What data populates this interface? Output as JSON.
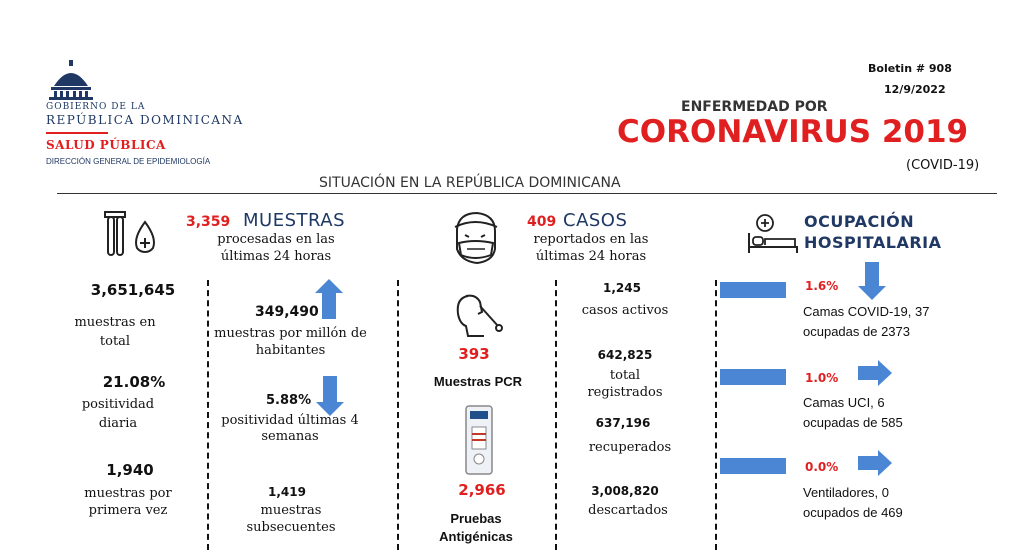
{
  "header": {
    "gov_line1": "GOBIERNO DE LA",
    "gov_line2": "REPÚBLICA DOMINICANA",
    "ministry": "SALUD PÚBLICA",
    "directorate": "DIRECCIÓN GENERAL DE EPIDEMIOLOGÍA",
    "bulletin": "Boletin # 908",
    "date": "12/9/2022",
    "title_small": "ENFERMEDAD POR",
    "title_big": "CORONAVIRUS 2019",
    "title_paren": "(COVID-19)",
    "subtitle": "SITUACIÓN EN LA REPÚBLICA DOMINICANA"
  },
  "muestras": {
    "daily_value": "3,359",
    "heading": "MUESTRAS",
    "caption": "procesadas en las últimas 24 horas",
    "total_value": "3,651,645",
    "total_label": "muestras en total",
    "pos_daily_value": "21.08%",
    "pos_daily_label": "positividad diaria",
    "first_value": "1,940",
    "first_label": "muestras por primera vez",
    "per_million_value": "349,490",
    "per_million_label": "muestras por millón de habitantes",
    "pos_4w_value": "5.88%",
    "pos_4w_label": "positividad últimas 4 semanas",
    "subsequent_value": "1,419",
    "subsequent_label": "muestras subsecuentes"
  },
  "casos": {
    "daily_value": "409",
    "heading": "CASOS",
    "caption": "reportados en las últimas 24 horas",
    "pcr_value": "393",
    "pcr_label": "Muestras PCR",
    "antigen_value": "2,966",
    "antigen_label": "Pruebas Antigénicas",
    "active_value": "1,245",
    "active_label": "casos activos",
    "registered_value": "642,825",
    "registered_label": "total registrados",
    "recovered_value": "637,196",
    "recovered_label": "recuperados",
    "discarded_value": "3,008,820",
    "discarded_label": "descartados"
  },
  "ocupacion": {
    "heading_line1": "OCUPACIÓN",
    "heading_line2": "HOSPITALARIA",
    "covid_beds_pct": "1.6%",
    "covid_beds_label": "Camas COVID-19,  37 ocupadas de 2373",
    "icu_pct": "1.0%",
    "icu_label": "Camas UCI,  6 ocupadas de 585",
    "vent_pct": "0.0%",
    "vent_label": "Ventiladores, 0 ocupados de 469"
  },
  "icons": [
    "capitol-dome-icon",
    "test-tubes-icon",
    "masked-face-icon",
    "nasal-swab-icon",
    "antigen-test-icon",
    "hospital-bed-icon",
    "arrow-up-icon",
    "arrow-down-icon",
    "arrow-right-icon"
  ],
  "colors": {
    "accent_red": "#e02020",
    "arrow_blue": "#4a86d4",
    "navy": "#1f3864"
  }
}
